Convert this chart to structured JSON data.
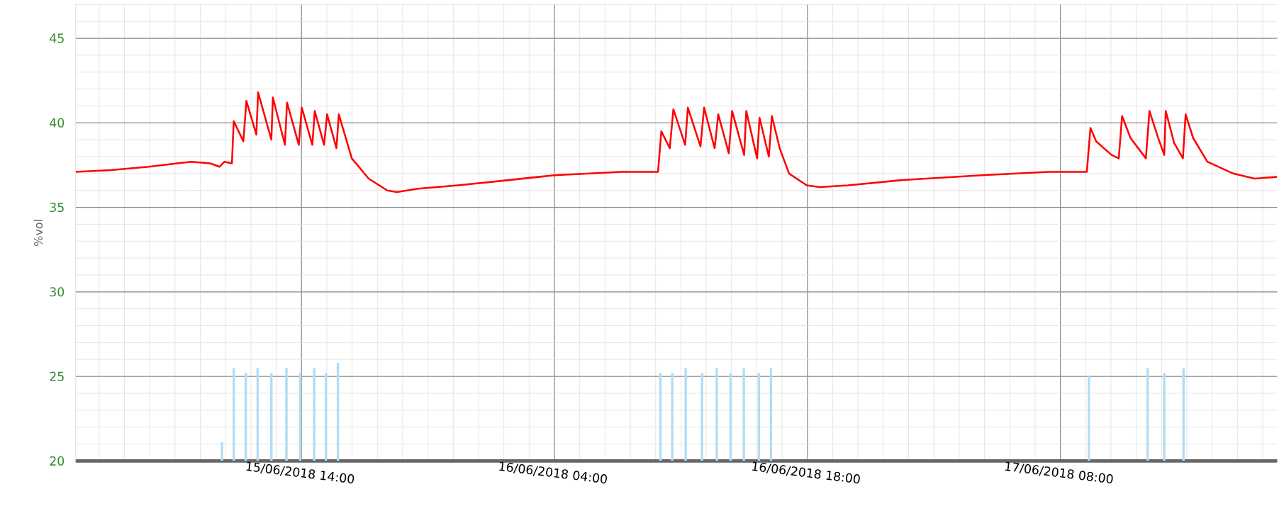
{
  "chart_data": {
    "type": "line",
    "ylabel": "%vol",
    "xlim": [
      "2018-06-15T01:30",
      "2018-06-17T20:00"
    ],
    "xticks": [
      {
        "value": "2018-06-15T14:00",
        "label": "15/06/2018 14:00"
      },
      {
        "value": "2018-06-16T04:00",
        "label": "16/06/2018 04:00"
      },
      {
        "value": "2018-06-16T18:00",
        "label": "16/06/2018 18:00"
      },
      {
        "value": "2018-06-17T08:00",
        "label": "17/06/2018 08:00"
      }
    ],
    "ylim": [
      20,
      47
    ],
    "yticks": [
      20,
      25,
      30,
      35,
      40,
      45
    ],
    "grid": true,
    "marker": "none",
    "line_style": "solid",
    "series": [
      {
        "color": "#ff0000",
        "x": [
          "2018-06-15T01:30",
          "2018-06-15T03:27",
          "2018-06-15T05:33",
          "2018-06-15T07:54",
          "2018-06-15T08:57",
          "2018-06-15T09:28",
          "2018-06-15T09:44",
          "2018-06-15T10:09",
          "2018-06-15T10:15",
          "2018-06-15T10:47",
          "2018-06-15T10:57",
          "2018-06-15T11:30",
          "2018-06-15T11:36",
          "2018-06-15T12:20",
          "2018-06-15T12:25",
          "2018-06-15T13:05",
          "2018-06-15T13:12",
          "2018-06-15T13:51",
          "2018-06-15T14:01",
          "2018-06-15T14:36",
          "2018-06-15T14:44",
          "2018-06-15T15:15",
          "2018-06-15T15:25",
          "2018-06-15T15:56",
          "2018-06-15T16:04",
          "2018-06-15T16:47",
          "2018-06-15T17:43",
          "2018-06-15T18:45",
          "2018-06-15T19:17",
          "2018-06-15T20:27",
          "2018-06-15T22:39",
          "2018-06-16T01:22",
          "2018-06-16T04:00",
          "2018-06-16T07:43",
          "2018-06-16T09:44",
          "2018-06-16T09:55",
          "2018-06-16T10:23",
          "2018-06-16T10:35",
          "2018-06-16T11:14",
          "2018-06-16T11:23",
          "2018-06-16T12:05",
          "2018-06-16T12:17",
          "2018-06-16T12:52",
          "2018-06-16T13:04",
          "2018-06-16T13:39",
          "2018-06-16T13:50",
          "2018-06-16T14:30",
          "2018-06-16T14:37",
          "2018-06-16T15:13",
          "2018-06-16T15:21",
          "2018-06-16T15:52",
          "2018-06-16T16:02",
          "2018-06-16T16:28",
          "2018-06-16T16:59",
          "2018-06-16T17:58",
          "2018-06-16T18:41",
          "2018-06-16T20:15",
          "2018-06-16T23:07",
          "2018-06-17T03:39",
          "2018-06-17T07:22",
          "2018-06-17T09:28",
          "2018-06-17T09:40",
          "2018-06-17T09:59",
          "2018-06-17T10:50",
          "2018-06-17T11:14",
          "2018-06-17T11:25",
          "2018-06-17T11:53",
          "2018-06-17T12:44",
          "2018-06-17T12:56",
          "2018-06-17T13:23",
          "2018-06-17T13:45",
          "2018-06-17T13:50",
          "2018-06-17T14:18",
          "2018-06-17T14:47",
          "2018-06-17T14:56",
          "2018-06-17T15:21",
          "2018-06-17T16:08",
          "2018-06-17T17:34",
          "2018-06-17T18:45",
          "2018-06-17T19:59"
        ],
        "values": [
          37.1,
          37.2,
          37.4,
          37.7,
          37.6,
          37.4,
          37.7,
          37.6,
          40.1,
          38.9,
          41.3,
          39.3,
          41.8,
          39.0,
          41.5,
          38.7,
          41.2,
          38.7,
          40.9,
          38.7,
          40.7,
          38.7,
          40.5,
          38.5,
          40.5,
          37.9,
          36.7,
          36.0,
          35.9,
          36.1,
          36.3,
          36.6,
          36.9,
          37.1,
          37.1,
          39.5,
          38.5,
          40.8,
          38.7,
          40.9,
          38.6,
          40.9,
          38.5,
          40.5,
          38.2,
          40.7,
          38.1,
          40.7,
          37.9,
          40.3,
          38.0,
          40.4,
          38.5,
          37.0,
          36.3,
          36.2,
          36.3,
          36.6,
          36.9,
          37.1,
          37.1,
          39.7,
          38.9,
          38.1,
          37.9,
          40.4,
          39.1,
          37.9,
          40.7,
          39.2,
          38.1,
          40.7,
          38.8,
          37.9,
          40.5,
          39.1,
          37.7,
          37.0,
          36.7,
          36.8
        ]
      },
      {
        "type": "bar",
        "color": "#b3dcf7",
        "x": [
          "2018-06-15T09:36",
          "2018-06-15T10:15",
          "2018-06-15T10:55",
          "2018-06-15T11:34",
          "2018-06-15T12:20",
          "2018-06-15T13:10",
          "2018-06-15T13:56",
          "2018-06-15T14:42",
          "2018-06-15T15:21",
          "2018-06-15T16:01",
          "2018-06-16T09:52",
          "2018-06-16T10:31",
          "2018-06-16T11:16",
          "2018-06-16T12:10",
          "2018-06-16T12:59",
          "2018-06-16T13:45",
          "2018-06-16T14:29",
          "2018-06-16T15:19",
          "2018-06-16T15:59",
          "2018-06-17T09:35",
          "2018-06-17T12:50",
          "2018-06-17T13:45",
          "2018-06-17T14:49"
        ],
        "values": [
          21.1,
          25.5,
          25.2,
          25.5,
          25.2,
          25.5,
          25.2,
          25.5,
          25.2,
          25.8,
          25.2,
          25.2,
          25.5,
          25.2,
          25.5,
          25.2,
          25.5,
          25.2,
          25.5,
          25.0,
          25.5,
          25.2,
          25.5
        ]
      }
    ]
  }
}
